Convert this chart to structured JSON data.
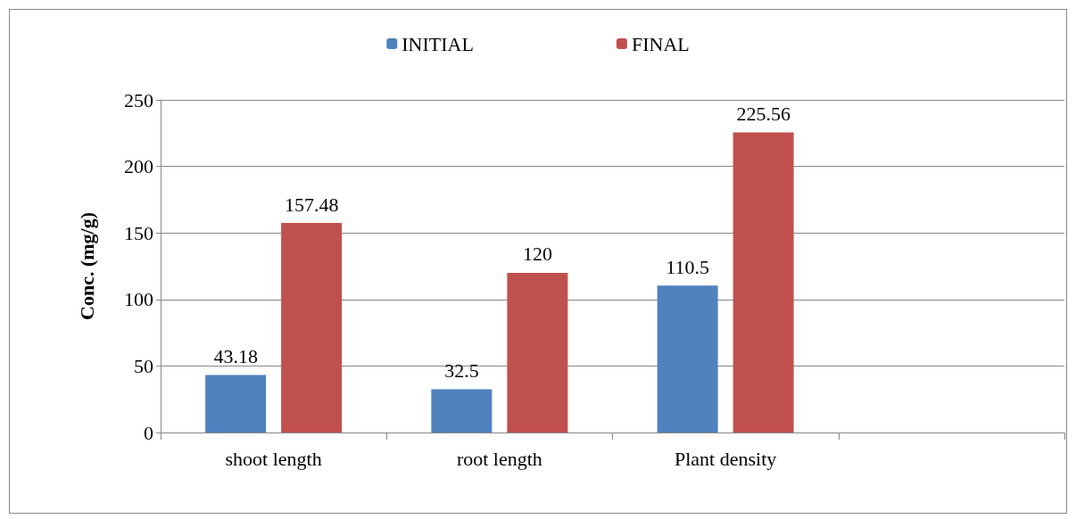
{
  "chart_data": {
    "type": "bar",
    "ylabel": "Conc. (mg/g)",
    "categories": [
      "shoot length",
      "root length",
      "Plant density",
      null
    ],
    "series": [
      {
        "name": "INITIAL",
        "color": "#4f81bd",
        "values": [
          43.18,
          32.5,
          110.5,
          null
        ]
      },
      {
        "name": "FINAL",
        "color": "#c0504d",
        "values": [
          157.48,
          120,
          225.56,
          null
        ]
      }
    ],
    "ylim": [
      0,
      250
    ],
    "yticks": [
      0,
      50,
      100,
      150,
      200,
      250
    ],
    "grid": "y",
    "legend": "top",
    "data_labels": true
  }
}
